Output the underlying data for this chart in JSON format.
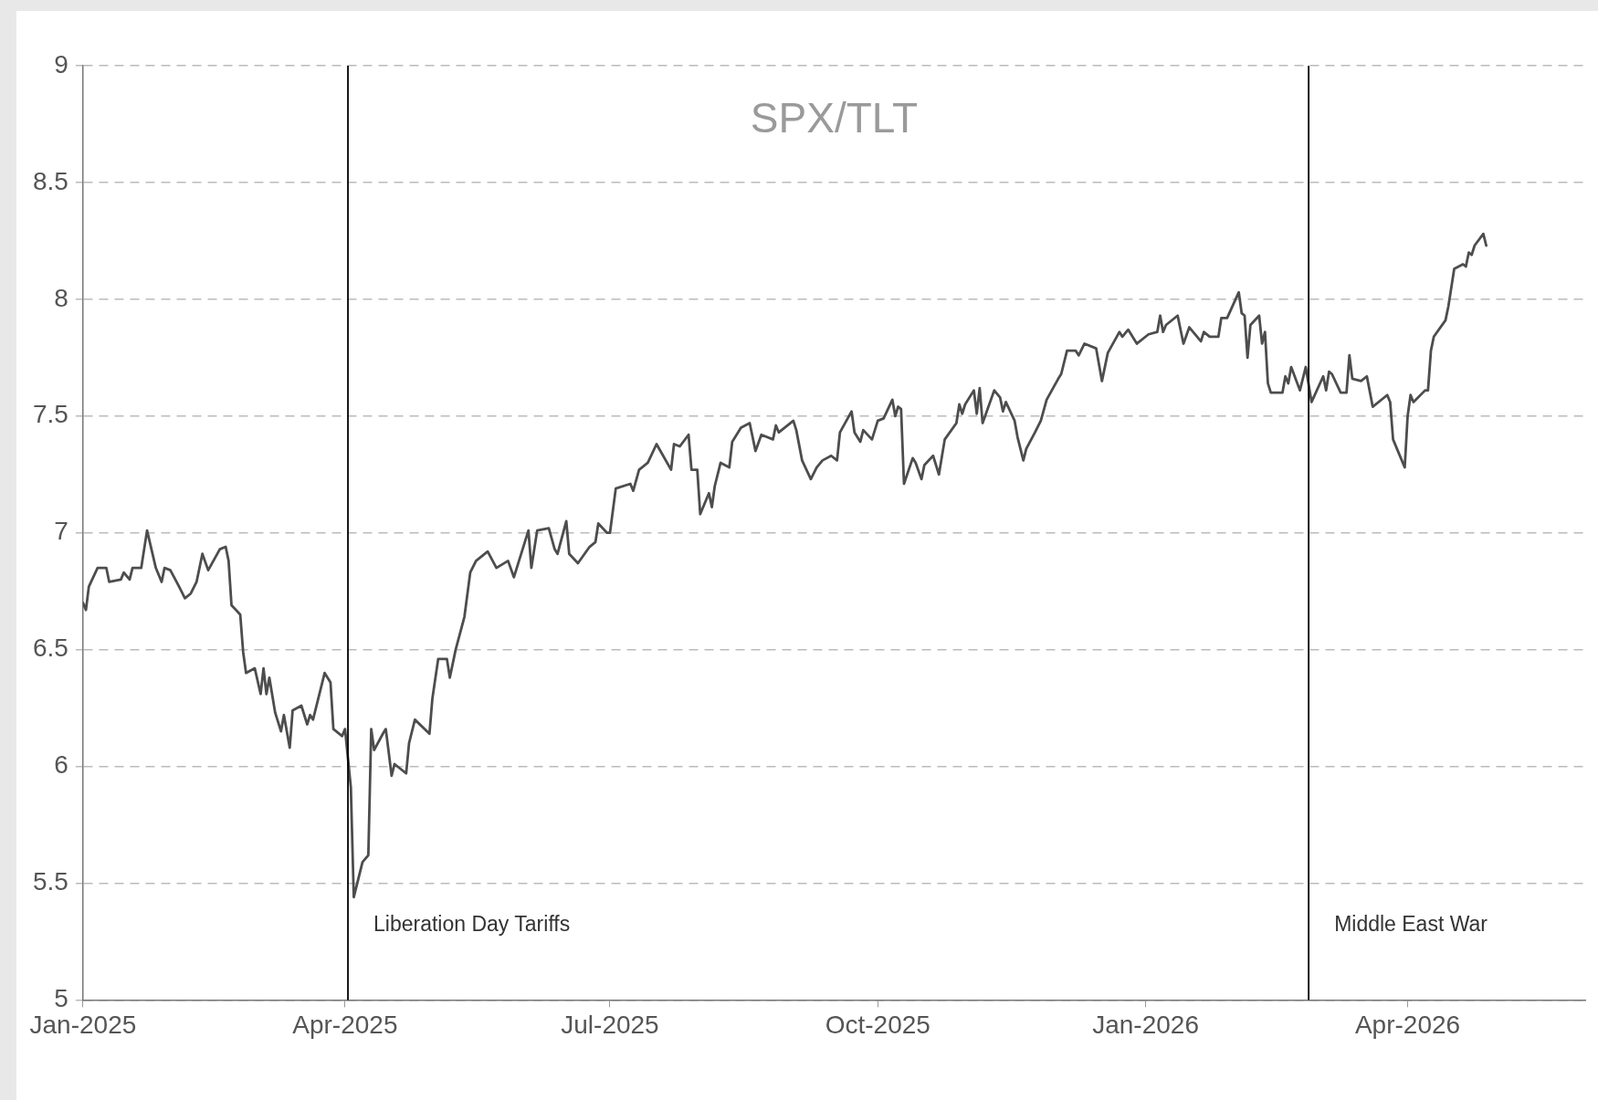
{
  "chart_data": {
    "type": "line",
    "title": "SPX/TLT",
    "x": [
      "2025-01-01",
      "2025-01-02",
      "2025-01-03",
      "2025-01-06",
      "2025-01-09",
      "2025-01-10",
      "2025-01-14",
      "2025-01-15",
      "2025-01-17",
      "2025-01-18",
      "2025-01-21",
      "2025-01-23",
      "2025-01-26",
      "2025-01-28",
      "2025-01-29",
      "2025-01-31",
      "2025-02-03",
      "2025-02-05",
      "2025-02-07",
      "2025-02-09",
      "2025-02-11",
      "2025-02-13",
      "2025-02-17",
      "2025-02-19",
      "2025-02-20",
      "2025-02-21",
      "2025-02-24",
      "2025-02-25",
      "2025-02-26",
      "2025-03-01",
      "2025-03-03",
      "2025-03-04",
      "2025-03-05",
      "2025-03-06",
      "2025-03-08",
      "2025-03-10",
      "2025-03-11",
      "2025-03-13",
      "2025-03-14",
      "2025-03-17",
      "2025-03-19",
      "2025-03-20",
      "2025-03-21",
      "2025-03-25",
      "2025-03-27",
      "2025-03-28",
      "2025-03-31",
      "2025-04-01",
      "2025-04-03",
      "2025-04-04",
      "2025-04-07",
      "2025-04-09",
      "2025-04-10",
      "2025-04-11",
      "2025-04-14",
      "2025-04-15",
      "2025-04-17",
      "2025-04-18",
      "2025-04-22",
      "2025-04-23",
      "2025-04-25",
      "2025-04-30",
      "2025-05-01",
      "2025-05-03",
      "2025-05-06",
      "2025-05-07",
      "2025-05-09",
      "2025-05-12",
      "2025-05-14",
      "2025-05-16",
      "2025-05-20",
      "2025-05-23",
      "2025-05-27",
      "2025-05-29",
      "2025-06-03",
      "2025-06-04",
      "2025-06-06",
      "2025-06-10",
      "2025-06-12",
      "2025-06-13",
      "2025-06-16",
      "2025-06-17",
      "2025-06-20",
      "2025-06-24",
      "2025-06-26",
      "2025-06-27",
      "2025-06-30",
      "2025-07-01",
      "2025-07-03",
      "2025-07-08",
      "2025-07-09",
      "2025-07-11",
      "2025-07-14",
      "2025-07-17",
      "2025-07-22",
      "2025-07-23",
      "2025-07-25",
      "2025-07-28",
      "2025-07-29",
      "2025-07-31",
      "2025-08-01",
      "2025-08-04",
      "2025-08-05",
      "2025-08-06",
      "2025-08-08",
      "2025-08-11",
      "2025-08-12",
      "2025-08-15",
      "2025-08-18",
      "2025-08-20",
      "2025-08-22",
      "2025-08-26",
      "2025-08-27",
      "2025-08-28",
      "2025-09-02",
      "2025-09-03",
      "2025-09-05",
      "2025-09-08",
      "2025-09-10",
      "2025-09-12",
      "2025-09-15",
      "2025-09-17",
      "2025-09-18",
      "2025-09-22",
      "2025-09-23",
      "2025-09-25",
      "2025-09-26",
      "2025-09-29",
      "2025-10-01",
      "2025-10-03",
      "2025-10-06",
      "2025-10-07",
      "2025-10-08",
      "2025-10-09",
      "2025-10-10",
      "2025-10-13",
      "2025-10-14",
      "2025-10-16",
      "2025-10-17",
      "2025-10-20",
      "2025-10-22",
      "2025-10-24",
      "2025-10-28",
      "2025-10-29",
      "2025-10-30",
      "2025-10-31",
      "2025-11-03",
      "2025-11-04",
      "2025-11-05",
      "2025-11-06",
      "2025-11-10",
      "2025-11-12",
      "2025-11-13",
      "2025-11-14",
      "2025-11-17",
      "2025-11-18",
      "2025-11-20",
      "2025-11-21",
      "2025-11-24",
      "2025-11-26",
      "2025-11-28",
      "2025-12-02",
      "2025-12-03",
      "2025-12-05",
      "2025-12-08",
      "2025-12-09",
      "2025-12-11",
      "2025-12-15",
      "2025-12-17",
      "2025-12-19",
      "2025-12-23",
      "2025-12-24",
      "2025-12-26",
      "2025-12-29",
      "2026-01-02",
      "2026-01-05",
      "2026-01-06",
      "2026-01-07",
      "2026-01-08",
      "2026-01-12",
      "2026-01-14",
      "2026-01-16",
      "2026-01-20",
      "2026-01-21",
      "2026-01-23",
      "2026-01-26",
      "2026-01-27",
      "2026-01-29",
      "2026-02-02",
      "2026-02-03",
      "2026-02-04",
      "2026-02-05",
      "2026-02-06",
      "2026-02-09",
      "2026-02-10",
      "2026-02-11",
      "2026-02-12",
      "2026-02-13",
      "2026-02-17",
      "2026-02-18",
      "2026-02-19",
      "2026-02-20",
      "2026-02-23",
      "2026-02-25",
      "2026-02-27",
      "2026-03-03",
      "2026-03-04",
      "2026-03-05",
      "2026-03-06",
      "2026-03-09",
      "2026-03-11",
      "2026-03-12",
      "2026-03-13",
      "2026-03-16",
      "2026-03-18",
      "2026-03-20",
      "2026-03-25",
      "2026-03-26",
      "2026-03-27",
      "2026-03-31",
      "2026-04-01",
      "2026-04-02",
      "2026-04-03",
      "2026-04-07",
      "2026-04-08",
      "2026-04-09",
      "2026-04-10",
      "2026-04-14",
      "2026-04-15",
      "2026-04-17",
      "2026-04-20",
      "2026-04-21",
      "2026-04-22",
      "2026-04-23",
      "2026-04-24",
      "2026-04-27",
      "2026-04-28"
    ],
    "series": [
      {
        "color": "#4d4d4d",
        "values": [
          6.7,
          6.67,
          6.77,
          6.85,
          6.85,
          6.79,
          6.8,
          6.83,
          6.8,
          6.85,
          6.85,
          7.01,
          6.85,
          6.79,
          6.85,
          6.84,
          6.77,
          6.72,
          6.74,
          6.79,
          6.91,
          6.84,
          6.93,
          6.94,
          6.88,
          6.69,
          6.65,
          6.49,
          6.4,
          6.42,
          6.31,
          6.42,
          6.31,
          6.38,
          6.23,
          6.15,
          6.22,
          6.08,
          6.24,
          6.26,
          6.18,
          6.22,
          6.2,
          6.4,
          6.36,
          6.16,
          6.13,
          6.16,
          5.91,
          5.44,
          5.59,
          5.62,
          6.16,
          6.07,
          6.14,
          6.16,
          5.96,
          6.01,
          5.97,
          6.1,
          6.2,
          6.14,
          6.29,
          6.46,
          6.46,
          6.38,
          6.5,
          6.64,
          6.83,
          6.88,
          6.92,
          6.85,
          6.88,
          6.81,
          7.01,
          6.85,
          7.01,
          7.02,
          6.93,
          6.91,
          7.05,
          6.91,
          6.87,
          6.94,
          6.96,
          7.04,
          7.0,
          7.0,
          7.19,
          7.21,
          7.18,
          7.27,
          7.3,
          7.38,
          7.27,
          7.38,
          7.37,
          7.42,
          7.27,
          7.27,
          7.08,
          7.17,
          7.11,
          7.2,
          7.3,
          7.28,
          7.39,
          7.45,
          7.47,
          7.35,
          7.42,
          7.4,
          7.46,
          7.43,
          7.48,
          7.44,
          7.31,
          7.23,
          7.28,
          7.31,
          7.33,
          7.31,
          7.43,
          7.52,
          7.43,
          7.39,
          7.44,
          7.4,
          7.48,
          7.49,
          7.57,
          7.5,
          7.54,
          7.53,
          7.21,
          7.32,
          7.3,
          7.23,
          7.29,
          7.33,
          7.25,
          7.4,
          7.47,
          7.55,
          7.51,
          7.55,
          7.61,
          7.51,
          7.62,
          7.47,
          7.61,
          7.58,
          7.52,
          7.56,
          7.48,
          7.41,
          7.31,
          7.36,
          7.43,
          7.48,
          7.57,
          7.66,
          7.68,
          7.78,
          7.78,
          7.76,
          7.81,
          7.79,
          7.65,
          7.77,
          7.86,
          7.84,
          7.87,
          7.81,
          7.85,
          7.86,
          7.93,
          7.86,
          7.89,
          7.93,
          7.81,
          7.88,
          7.82,
          7.86,
          7.84,
          7.84,
          7.92,
          7.92,
          8.03,
          7.94,
          7.93,
          7.75,
          7.89,
          7.93,
          7.81,
          7.86,
          7.64,
          7.6,
          7.6,
          7.67,
          7.64,
          7.71,
          7.61,
          7.71,
          7.56,
          7.67,
          7.61,
          7.69,
          7.68,
          7.6,
          7.6,
          7.76,
          7.66,
          7.65,
          7.67,
          7.54,
          7.59,
          7.56,
          7.4,
          7.28,
          7.5,
          7.59,
          7.56,
          7.61,
          7.61,
          7.78,
          7.84,
          7.91,
          7.97,
          8.13,
          8.15,
          8.14,
          8.2,
          8.19,
          8.23,
          8.28,
          8.23
        ]
      }
    ],
    "xlim": [
      "2025-01-01",
      "2026-06-01"
    ],
    "xticks": [
      {
        "value": "2025-01-01",
        "label": "Jan-2025"
      },
      {
        "value": "2025-04-01",
        "label": "Apr-2025"
      },
      {
        "value": "2025-07-01",
        "label": "Jul-2025"
      },
      {
        "value": "2025-10-01",
        "label": "Oct-2025"
      },
      {
        "value": "2026-01-01",
        "label": "Jan-2026"
      },
      {
        "value": "2026-04-01",
        "label": "Apr-2026"
      }
    ],
    "ylim": [
      5,
      9
    ],
    "yticks": [
      5,
      5.5,
      6,
      6.5,
      7,
      7.5,
      8,
      8.5,
      9
    ],
    "grid": "y",
    "ref_lines": [
      {
        "axis": "x",
        "value": "2025-04-02",
        "label": "Liberation Day Tariffs",
        "color": "#000000"
      },
      {
        "axis": "x",
        "value": "2026-02-26",
        "label": "Middle East War",
        "color": "#000000"
      }
    ]
  }
}
